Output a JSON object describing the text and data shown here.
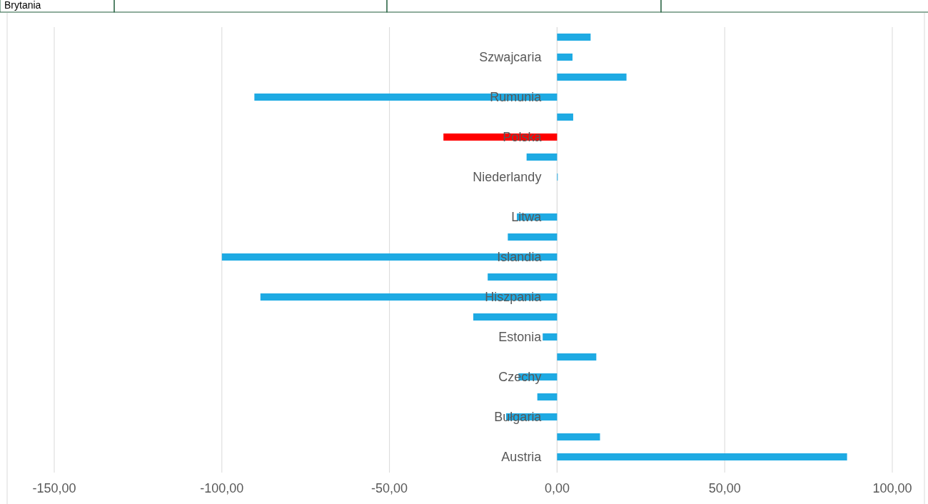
{
  "chart_data": {
    "type": "bar",
    "orientation": "horizontal",
    "categories": [
      null,
      "Szwajcaria",
      null,
      "Rumunia",
      null,
      "Polska",
      null,
      "Niederlandy",
      null,
      "Litwa",
      null,
      "Islandia",
      null,
      "Hiszpania",
      null,
      "Estonia",
      null,
      "Czechy",
      null,
      "Bułgaria",
      null,
      "Austria"
    ],
    "values": [
      10.0,
      4.6,
      20.7,
      -90.3,
      4.8,
      -33.9,
      -9.1,
      0.2,
      null,
      -12,
      -14.7,
      -100,
      -20.7,
      -88.5,
      -25,
      -4.3,
      11.7,
      -11.5,
      -5.9,
      -15.2,
      12.8,
      86.5
    ],
    "colors": [
      "#1eaae3",
      "#1eaae3",
      "#1eaae3",
      "#1eaae3",
      "#1eaae3",
      "#ff0000",
      "#1eaae3",
      "#1eaae3",
      "#1eaae3",
      "#1eaae3",
      "#1eaae3",
      "#1eaae3",
      "#1eaae3",
      "#1eaae3",
      "#1eaae3",
      "#1eaae3",
      "#1eaae3",
      "#1eaae3",
      "#1eaae3",
      "#1eaae3",
      "#1eaae3",
      "#1eaae3"
    ],
    "xlim": [
      -150,
      100
    ],
    "xticks": [
      {
        "value": -150,
        "label": "-150,00"
      },
      {
        "value": -100,
        "label": "-100,00"
      },
      {
        "value": -50,
        "label": "-50,00"
      },
      {
        "value": 0,
        "label": "0,00"
      },
      {
        "value": 50,
        "label": "50,00"
      },
      {
        "value": 100,
        "label": "100,00"
      }
    ],
    "grid": "x",
    "annotations": [
      "Brytania"
    ]
  }
}
